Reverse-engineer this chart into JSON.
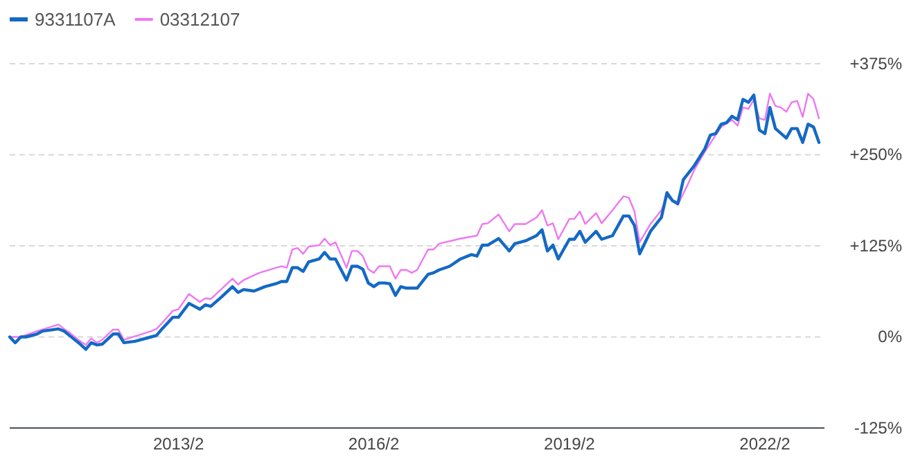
{
  "chart_data": {
    "type": "line",
    "legend": "top left",
    "grid": "y",
    "marker": "none",
    "line_style": "solid",
    "xlim": [
      "2010-07",
      "2023-01"
    ],
    "xticks": [
      {
        "value": "2013-02",
        "label": "2013/2"
      },
      {
        "value": "2016-02",
        "label": "2016/2"
      },
      {
        "value": "2019-02",
        "label": "2019/2"
      },
      {
        "value": "2022-02",
        "label": "2022/2"
      }
    ],
    "ylim": [
      -125,
      375
    ],
    "yticks": [
      {
        "value": -125,
        "label": "-125%"
      },
      {
        "value": 0,
        "label": "0%"
      },
      {
        "value": 125,
        "label": "+125%"
      },
      {
        "value": 250,
        "label": "+250%"
      },
      {
        "value": 375,
        "label": "+375%"
      }
    ],
    "series": [
      {
        "name": "9331107A",
        "color": "#1469c4",
        "x": [
          "2010-07",
          "2010-08",
          "2010-09",
          "2010-10",
          "2010-12",
          "2011-01",
          "2011-04",
          "2011-05",
          "2011-06",
          "2011-08",
          "2011-09",
          "2011-10",
          "2011-11",
          "2011-12",
          "2012-02",
          "2012-03",
          "2012-04",
          "2012-06",
          "2012-09",
          "2012-10",
          "2012-11",
          "2013-01",
          "2013-02",
          "2013-04",
          "2013-06",
          "2013-07",
          "2013-08",
          "2013-10",
          "2013-12",
          "2014-01",
          "2014-02",
          "2014-04",
          "2014-06",
          "2014-08",
          "2014-09",
          "2014-10",
          "2014-11",
          "2014-12",
          "2015-01",
          "2015-02",
          "2015-04",
          "2015-05",
          "2015-06",
          "2015-07",
          "2015-09",
          "2015-10",
          "2015-11",
          "2015-12",
          "2016-01",
          "2016-02",
          "2016-03",
          "2016-04",
          "2016-05",
          "2016-06",
          "2016-07",
          "2016-08",
          "2016-10",
          "2016-12",
          "2017-01",
          "2017-02",
          "2017-04",
          "2017-06",
          "2017-08",
          "2017-09",
          "2017-10",
          "2017-11",
          "2018-01",
          "2018-03",
          "2018-04",
          "2018-06",
          "2018-08",
          "2018-09",
          "2018-10",
          "2018-11",
          "2018-12",
          "2019-02",
          "2019-03",
          "2019-04",
          "2019-05",
          "2019-07",
          "2019-08",
          "2019-10",
          "2019-12",
          "2020-01",
          "2020-02",
          "2020-03",
          "2020-05",
          "2020-07",
          "2020-08",
          "2020-09",
          "2020-10",
          "2020-11",
          "2021-01",
          "2021-03",
          "2021-04",
          "2021-05",
          "2021-06",
          "2021-07",
          "2021-08",
          "2021-09",
          "2021-10",
          "2021-11",
          "2021-12",
          "2022-01",
          "2022-02",
          "2022-03",
          "2022-04",
          "2022-06",
          "2022-07",
          "2022-08",
          "2022-09",
          "2022-10",
          "2022-11",
          "2022-12"
        ],
        "values": [
          0,
          -8,
          0,
          0,
          4,
          8,
          11,
          8,
          2,
          -10,
          -17,
          -8,
          -11,
          -10,
          4,
          4,
          -8,
          -6,
          0,
          2,
          11,
          27,
          27,
          46,
          38,
          44,
          42,
          55,
          69,
          61,
          65,
          63,
          69,
          73,
          76,
          76,
          95,
          95,
          90,
          103,
          107,
          116,
          107,
          107,
          78,
          97,
          97,
          93,
          74,
          69,
          74,
          74,
          73,
          57,
          69,
          67,
          67,
          86,
          88,
          92,
          97,
          107,
          113,
          111,
          126,
          126,
          135,
          118,
          128,
          132,
          139,
          147,
          118,
          126,
          107,
          134,
          134,
          145,
          130,
          145,
          134,
          139,
          166,
          166,
          153,
          114,
          145,
          164,
          198,
          187,
          183,
          216,
          235,
          258,
          277,
          279,
          292,
          294,
          303,
          298,
          326,
          322,
          332,
          284,
          279,
          315,
          286,
          273,
          286,
          286,
          267,
          292,
          288,
          267
        ]
      },
      {
        "name": "03312107",
        "color": "#ee77f2",
        "x": [
          "2010-07",
          "2010-09",
          "2010-12",
          "2011-04",
          "2011-05",
          "2011-06",
          "2011-08",
          "2011-09",
          "2011-10",
          "2011-11",
          "2011-12",
          "2012-02",
          "2012-03",
          "2012-04",
          "2012-09",
          "2012-10",
          "2012-11",
          "2013-01",
          "2013-02",
          "2013-04",
          "2013-06",
          "2013-07",
          "2013-08",
          "2013-12",
          "2014-01",
          "2014-02",
          "2014-05",
          "2014-09",
          "2014-10",
          "2014-11",
          "2014-12",
          "2015-01",
          "2015-02",
          "2015-04",
          "2015-05",
          "2015-06",
          "2015-07",
          "2015-09",
          "2015-10",
          "2015-11",
          "2015-12",
          "2016-01",
          "2016-02",
          "2016-03",
          "2016-05",
          "2016-06",
          "2016-07",
          "2016-08",
          "2016-09",
          "2016-10",
          "2016-12",
          "2017-01",
          "2017-02",
          "2017-06",
          "2017-09",
          "2017-10",
          "2017-11",
          "2018-01",
          "2018-03",
          "2018-04",
          "2018-06",
          "2018-08",
          "2018-09",
          "2018-10",
          "2018-11",
          "2018-12",
          "2019-02",
          "2019-03",
          "2019-04",
          "2019-05",
          "2019-07",
          "2019-08",
          "2019-10",
          "2019-12",
          "2020-01",
          "2020-02",
          "2020-03",
          "2020-05",
          "2020-07",
          "2020-08",
          "2020-10",
          "2020-12",
          "2021-01",
          "2021-03",
          "2021-05",
          "2021-06",
          "2021-08",
          "2021-09",
          "2021-10",
          "2021-11",
          "2021-12",
          "2022-01",
          "2022-02",
          "2022-03",
          "2022-04",
          "2022-05",
          "2022-06",
          "2022-07",
          "2022-08",
          "2022-09",
          "2022-10",
          "2022-11",
          "2022-12"
        ],
        "values": [
          0,
          0,
          8,
          17,
          11,
          6,
          -6,
          -11,
          -2,
          -8,
          -4,
          10,
          10,
          -4,
          8,
          11,
          19,
          36,
          38,
          59,
          48,
          53,
          52,
          80,
          72,
          78,
          88,
          97,
          95,
          120,
          122,
          114,
          124,
          126,
          135,
          126,
          130,
          95,
          118,
          118,
          111,
          93,
          88,
          97,
          97,
          80,
          92,
          92,
          88,
          92,
          120,
          120,
          128,
          135,
          139,
          155,
          156,
          168,
          145,
          155,
          155,
          164,
          174,
          153,
          156,
          134,
          162,
          162,
          172,
          155,
          170,
          156,
          174,
          193,
          191,
          172,
          130,
          155,
          174,
          193,
          181,
          212,
          229,
          254,
          277,
          288,
          298,
          290,
          315,
          313,
          326,
          300,
          298,
          334,
          317,
          315,
          309,
          322,
          324,
          302,
          334,
          326,
          300
        ]
      }
    ]
  }
}
